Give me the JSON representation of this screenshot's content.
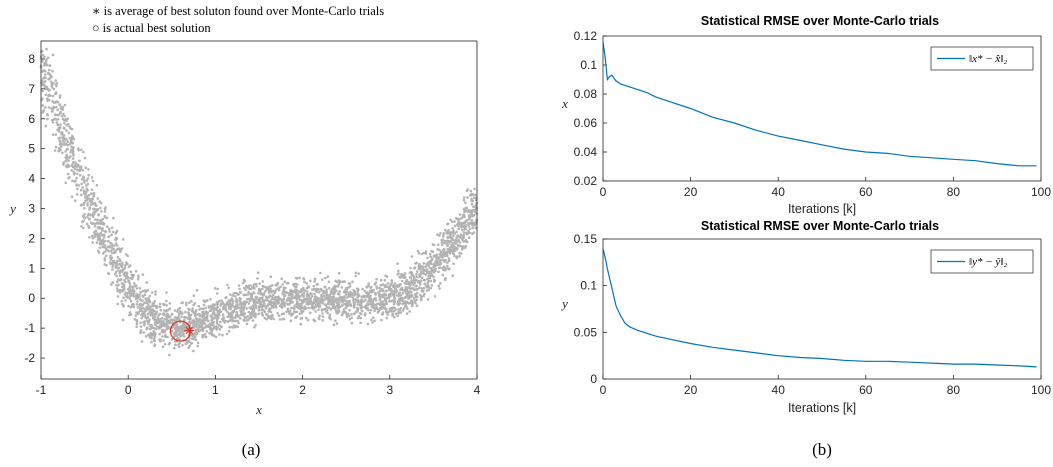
{
  "figure": {
    "caption_a": "(a)",
    "caption_b": "(b)",
    "note_star": "∗ is average of best soluton found over Monte-Carlo trials",
    "note_circle": "○ is actual best solution"
  },
  "colors": {
    "scatter": "#b3b3b3",
    "marker": "#e0301e",
    "line": "#0072bd",
    "axis": "#262626"
  },
  "chart_data": [
    {
      "type": "scatter",
      "title": "",
      "xlabel": "x",
      "ylabel": "y",
      "xlim": [
        -1,
        4
      ],
      "ylim": [
        -2.7,
        8.6
      ],
      "xticks": [
        "-1",
        "0",
        "1",
        "2",
        "3",
        "4"
      ],
      "yticks": [
        "-2",
        "-1",
        "0",
        "1",
        "2",
        "3",
        "4",
        "5",
        "6",
        "7",
        "8"
      ],
      "grid": false,
      "series": [
        {
          "marker": "dot",
          "description_points": "dense cloud of samples along a valley curve",
          "centerline": {
            "x": [
              -1.0,
              -0.75,
              -0.5,
              -0.25,
              0.0,
              0.25,
              0.5,
              0.75,
              1.0,
              1.5,
              2.0,
              2.5,
              3.0,
              3.25,
              3.5,
              3.75,
              4.0
            ],
            "y": [
              7.8,
              5.5,
              3.5,
              1.8,
              0.3,
              -0.6,
              -1.0,
              -0.85,
              -0.55,
              -0.1,
              0.0,
              -0.1,
              0.0,
              0.4,
              1.1,
              2.0,
              3.0
            ]
          }
        }
      ],
      "markers": {
        "actual_best": {
          "symbol": "circle",
          "x": 0.6,
          "y": -1.1
        },
        "average_best": {
          "symbol": "asterisk",
          "x": 0.7,
          "y": -1.08
        }
      }
    },
    {
      "type": "line",
      "title": "Statistical RMSE over Monte-Carlo trials",
      "xlabel": "Iterations [k]",
      "ylabel": "x",
      "xlim": [
        0,
        100
      ],
      "ylim": [
        0.02,
        0.12
      ],
      "xticks": [
        "0",
        "20",
        "40",
        "60",
        "80",
        "100"
      ],
      "yticks": [
        "0.02",
        "0.04",
        "0.06",
        "0.08",
        "0.1",
        "0.12"
      ],
      "grid": false,
      "legend": "top-right",
      "legend_label": "‖x* − x̂‖₂",
      "series": [
        {
          "name": "‖x* − x̂‖₂",
          "x": [
            0,
            0.5,
            1,
            1.5,
            2,
            3,
            4,
            6,
            8,
            10,
            12,
            15,
            20,
            25,
            30,
            35,
            40,
            45,
            50,
            55,
            60,
            65,
            70,
            75,
            80,
            85,
            90,
            95,
            99
          ],
          "y": [
            0.116,
            0.105,
            0.09,
            0.092,
            0.093,
            0.089,
            0.087,
            0.085,
            0.083,
            0.081,
            0.078,
            0.075,
            0.07,
            0.064,
            0.06,
            0.055,
            0.051,
            0.048,
            0.045,
            0.042,
            0.04,
            0.039,
            0.037,
            0.036,
            0.035,
            0.034,
            0.032,
            0.0305,
            0.0305
          ]
        }
      ]
    },
    {
      "type": "line",
      "title": "Statistical RMSE over Monte-Carlo trials",
      "xlabel": "Iterations [k]",
      "ylabel": "y",
      "xlim": [
        0,
        100
      ],
      "ylim": [
        0,
        0.15
      ],
      "xticks": [
        "0",
        "20",
        "40",
        "60",
        "80",
        "100"
      ],
      "yticks": [
        "0",
        "0.05",
        "0.1",
        "0.15"
      ],
      "grid": false,
      "legend": "top-right",
      "legend_label": "‖y* − ŷ‖₂",
      "series": [
        {
          "name": "‖y* − ŷ‖₂",
          "x": [
            0,
            0.5,
            1,
            2,
            3,
            4,
            5,
            6,
            8,
            10,
            12,
            15,
            20,
            25,
            30,
            35,
            40,
            45,
            50,
            55,
            60,
            65,
            70,
            75,
            80,
            85,
            90,
            95,
            99
          ],
          "y": [
            0.14,
            0.13,
            0.118,
            0.098,
            0.078,
            0.068,
            0.06,
            0.056,
            0.052,
            0.049,
            0.046,
            0.043,
            0.038,
            0.034,
            0.031,
            0.028,
            0.025,
            0.023,
            0.022,
            0.02,
            0.019,
            0.019,
            0.018,
            0.017,
            0.016,
            0.016,
            0.015,
            0.014,
            0.013
          ]
        }
      ]
    }
  ]
}
